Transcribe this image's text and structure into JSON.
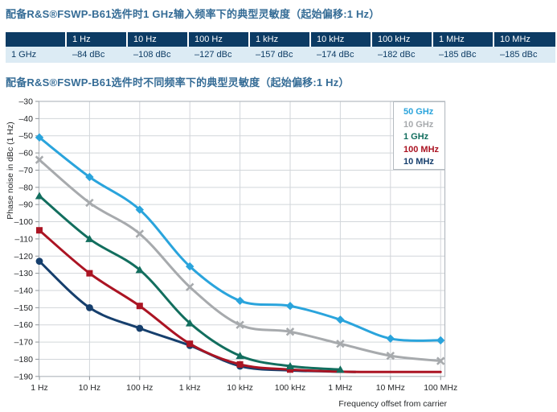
{
  "section1": {
    "title": "配备R&S®FSWP-B61选件时1 GHz输入频率下的典型灵敏度（起始偏移:1 Hz）",
    "table": {
      "headers": [
        "",
        "1 Hz",
        "10 Hz",
        "100 Hz",
        "1 kHz",
        "10 kHz",
        "100 kHz",
        "1 MHz",
        "10 MHz"
      ],
      "rows": [
        [
          "1 GHz",
          "–84 dBc",
          "–108 dBc",
          "–127 dBc",
          "–157 dBc",
          "–174 dBc",
          "–182 dBc",
          "–185 dBc",
          "–185 dBc"
        ]
      ]
    }
  },
  "section2": {
    "title": "配备R&S®FSWP-B61选件时不同频率下的典型灵敏度（起始偏移:1 Hz）",
    "chart_data": {
      "type": "line",
      "x_scale": "log-decades",
      "x_categories": [
        "1 Hz",
        "10 Hz",
        "100 Hz",
        "1 kHz",
        "10 kHz",
        "100 kHz",
        "1 MHz",
        "10 MHz",
        "100 MHz"
      ],
      "xlabel": "Frequency offset from carrier",
      "ylabel": "Phase noise in dBc (1 Hz)",
      "ylim": [
        -190,
        -30
      ],
      "ytick_step": 10,
      "grid": true,
      "legend_position": "top-right-inside",
      "colors": {
        "grid": "#d2d6da",
        "border": "#b4bac0",
        "tick": "#8e9499",
        "axis_text": "#26282a",
        "title_blue": "#356c96",
        "table_header_bg": "#0c3b64",
        "table_row_bg": "#dcebf4"
      },
      "series": [
        {
          "name": "10 MHz",
          "legend_order": 5,
          "color": "#163f6d",
          "marker": "circle",
          "markers_through_index": 4,
          "points": [
            [
              0,
              -123
            ],
            [
              1,
              -150
            ],
            [
              2,
              -162
            ],
            [
              3,
              -172
            ],
            [
              4,
              -184
            ],
            [
              5,
              -186.5
            ],
            [
              6,
              -187.2
            ],
            [
              6.3,
              -187.4
            ]
          ]
        },
        {
          "name": "100 MHz",
          "legend_order": 4,
          "color": "#ab1423",
          "marker": "square",
          "markers_through_index": 5,
          "points": [
            [
              0,
              -105
            ],
            [
              1,
              -130
            ],
            [
              2,
              -149
            ],
            [
              3,
              -171
            ],
            [
              4,
              -183
            ],
            [
              5,
              -186
            ],
            [
              6,
              -187.2
            ],
            [
              7,
              -187.4
            ],
            [
              8,
              -187.4
            ]
          ]
        },
        {
          "name": "1 GHz",
          "legend_order": 3,
          "color": "#126e5e",
          "marker": "triangle",
          "markers_through_index": 6,
          "points": [
            [
              0,
              -85
            ],
            [
              1,
              -110
            ],
            [
              2,
              -128
            ],
            [
              3,
              -159
            ],
            [
              4,
              -178
            ],
            [
              5,
              -184
            ],
            [
              6,
              -186
            ]
          ]
        },
        {
          "name": "10 GHz",
          "legend_order": 2,
          "color": "#a7aaad",
          "marker": "x",
          "markers_through_index": 8,
          "points": [
            [
              0,
              -64
            ],
            [
              1,
              -89
            ],
            [
              2,
              -107
            ],
            [
              3,
              -138
            ],
            [
              4,
              -160
            ],
            [
              5,
              -164
            ],
            [
              6,
              -171
            ],
            [
              7,
              -178
            ],
            [
              8,
              -181
            ]
          ]
        },
        {
          "name": "50 GHz",
          "legend_order": 1,
          "color": "#2aa4dc",
          "marker": "diamond",
          "markers_through_index": 8,
          "points": [
            [
              0,
              -51
            ],
            [
              1,
              -74
            ],
            [
              2,
              -93
            ],
            [
              3,
              -126
            ],
            [
              4,
              -146
            ],
            [
              5,
              -149
            ],
            [
              6,
              -157
            ],
            [
              7,
              -168
            ],
            [
              8,
              -169
            ]
          ]
        }
      ]
    }
  }
}
